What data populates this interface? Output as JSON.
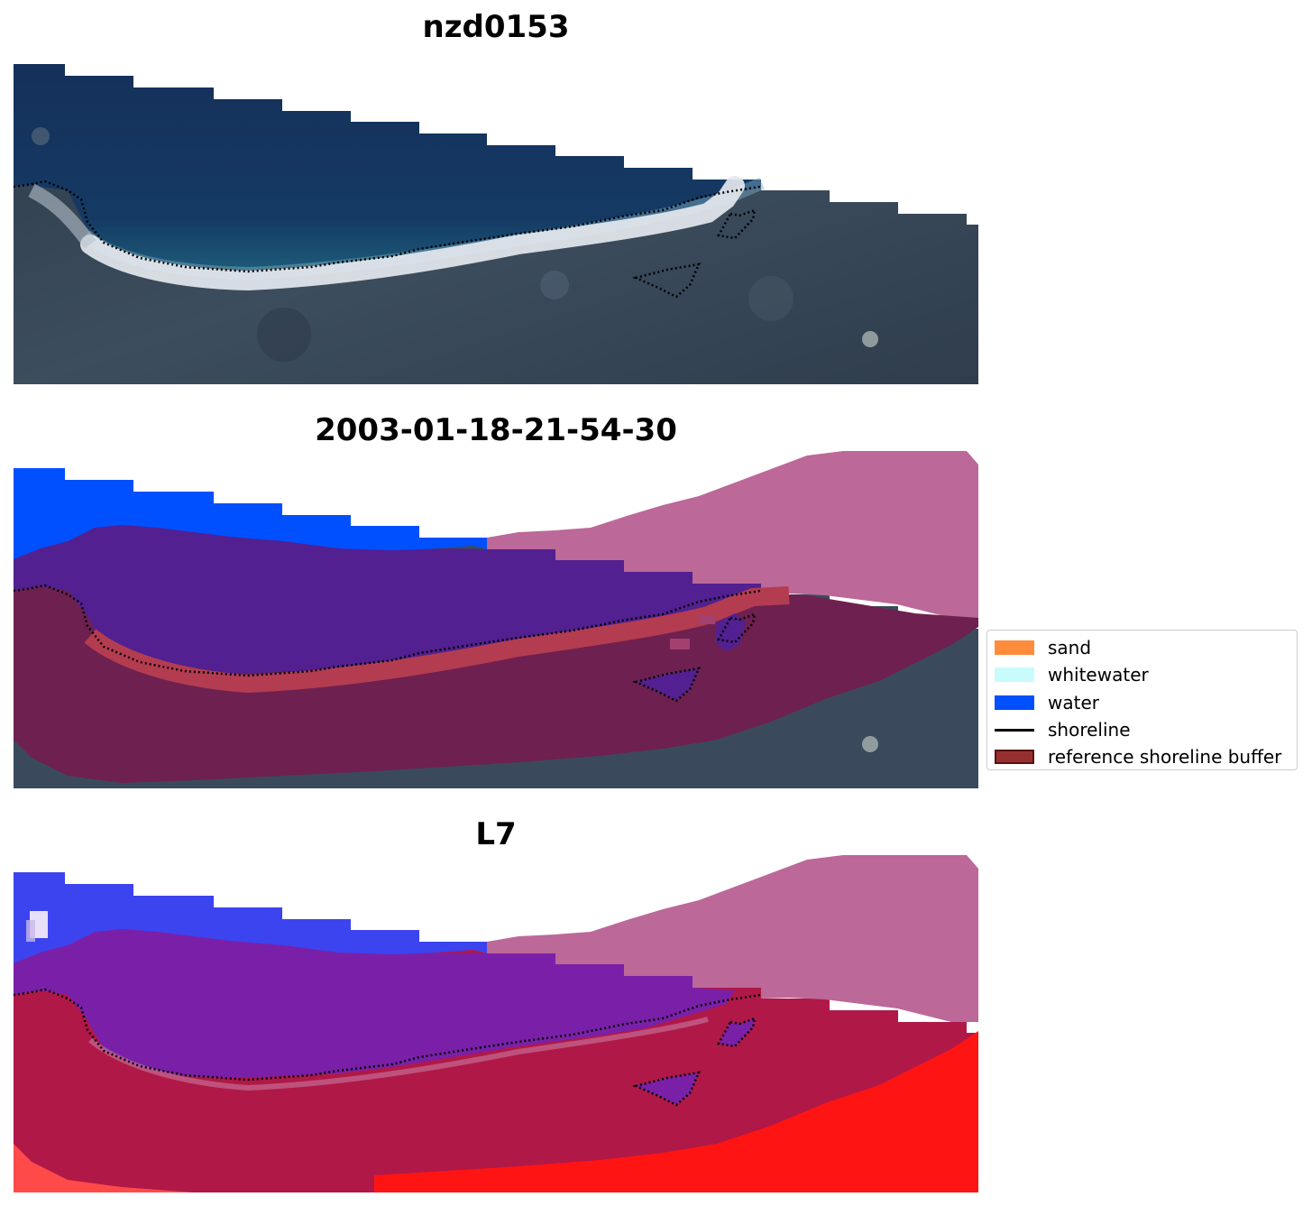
{
  "panels": [
    {
      "title": "nzd0153",
      "kind": "rgb"
    },
    {
      "title": "2003-01-18-21-54-30",
      "kind": "classified"
    },
    {
      "title": "L7",
      "kind": "index"
    }
  ],
  "legend": {
    "items": [
      {
        "label": "sand",
        "color": "#ff8c3c",
        "kind": "patch"
      },
      {
        "label": "whitewater",
        "color": "#c8fcfc",
        "kind": "patch"
      },
      {
        "label": "water",
        "color": "#0050ff",
        "kind": "patch"
      },
      {
        "label": "shoreline",
        "color": "#000000",
        "kind": "line"
      },
      {
        "label": "reference shoreline buffer",
        "color": "#963030",
        "kind": "patch"
      }
    ]
  },
  "colors": {
    "ocean": "#163058",
    "land": "#3a4a5c",
    "beach": "#dfe3ea",
    "water_class": "#0050ff",
    "water_in_buffer": "#522090",
    "buffer": "#6e2050",
    "buffer_sand": "#b43c50",
    "nodata": "#bc6898",
    "index_high": "#ff1414",
    "index_mid": "#b01848",
    "index_water": "#3c44f0"
  }
}
